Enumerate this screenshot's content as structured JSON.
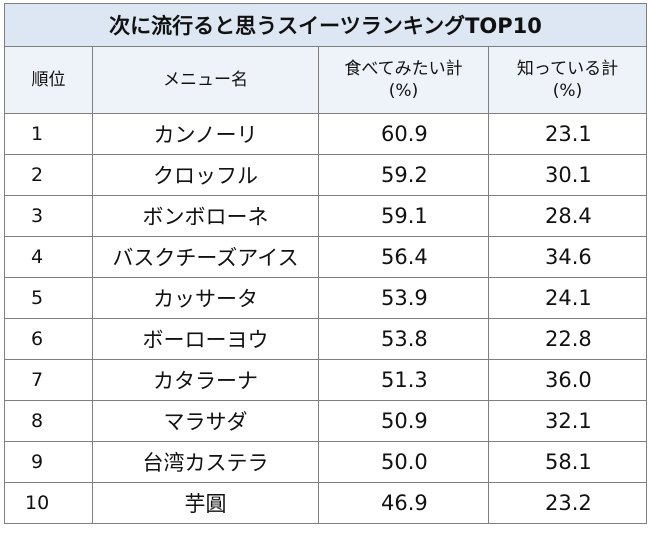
{
  "table": {
    "title": "次に流行ると思うスイーツランキングTOP10",
    "headers": {
      "rank": "順位",
      "menu": "メニュー名",
      "want_line1": "食べてみたい計",
      "want_line2": "(%)",
      "know_line1": "知っている計",
      "know_line2": "(%)"
    },
    "rows": [
      {
        "rank": "1",
        "name": "カンノーリ",
        "want": "60.9",
        "know": "23.1"
      },
      {
        "rank": "2",
        "name": "クロッフル",
        "want": "59.2",
        "know": "30.1"
      },
      {
        "rank": "3",
        "name": "ボンボローネ",
        "want": "59.1",
        "know": "28.4"
      },
      {
        "rank": "4",
        "name": "バスクチーズアイス",
        "want": "56.4",
        "know": "34.6"
      },
      {
        "rank": "5",
        "name": "カッサータ",
        "want": "53.9",
        "know": "24.1"
      },
      {
        "rank": "6",
        "name": "ボーローヨウ",
        "want": "53.8",
        "know": "22.8"
      },
      {
        "rank": "7",
        "name": "カタラーナ",
        "want": "51.3",
        "know": "36.0"
      },
      {
        "rank": "8",
        "name": "マラサダ",
        "want": "50.9",
        "know": "32.1"
      },
      {
        "rank": "9",
        "name": "台湾カステラ",
        "want": "50.0",
        "know": "58.1"
      },
      {
        "rank": "10",
        "name": "芋圓",
        "want": "46.9",
        "know": "23.2"
      }
    ]
  },
  "colors": {
    "title_bg": "#dde6f3",
    "header_bg": "#eef2f9",
    "border": "#7f7f7f"
  }
}
